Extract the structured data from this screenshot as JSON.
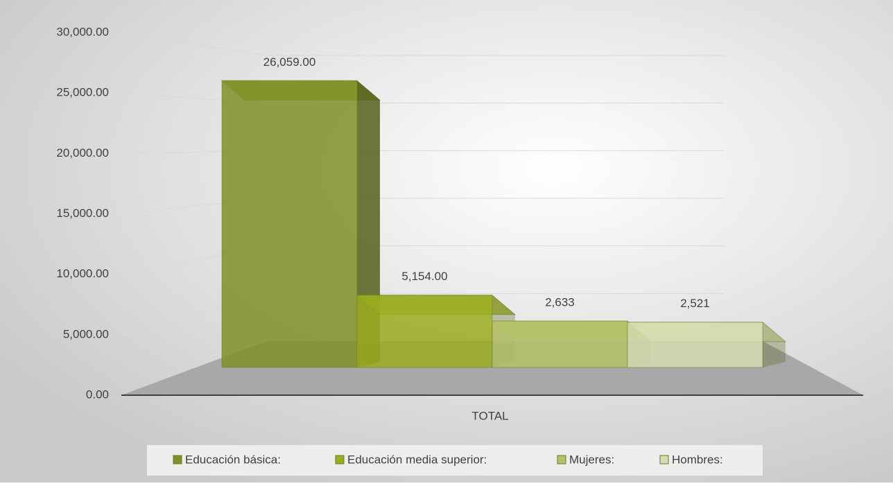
{
  "chart_data": {
    "type": "bar3d",
    "categories": [
      "TOTAL"
    ],
    "series": [
      {
        "name": "Educación básica:",
        "color": "#7f9126",
        "values": [
          26059
        ],
        "value_labels": [
          "26,059.00"
        ]
      },
      {
        "name": "Educación media superior:",
        "color": "#9aad1f",
        "values": [
          5154
        ],
        "value_labels": [
          "5,154.00"
        ]
      },
      {
        "name": "Mujeres:",
        "color": "#b4c266",
        "values": [
          2633
        ],
        "value_labels": [
          "2,633"
        ]
      },
      {
        "name": "Hombres:",
        "color": "#d4ddaf",
        "values": [
          2521
        ],
        "value_labels": [
          "2,521"
        ]
      }
    ],
    "ylim": [
      0,
      30000
    ],
    "yticks": [
      {
        "value": 0,
        "label": "0.00"
      },
      {
        "value": 5000,
        "label": "5,000.00"
      },
      {
        "value": 10000,
        "label": "10,000.00"
      },
      {
        "value": 15000,
        "label": "15,000.00"
      },
      {
        "value": 20000,
        "label": "20,000.00"
      },
      {
        "value": 25000,
        "label": "25,000.00"
      },
      {
        "value": 30000,
        "label": "30,000.00"
      }
    ],
    "grid": true,
    "legend": "bottom"
  }
}
